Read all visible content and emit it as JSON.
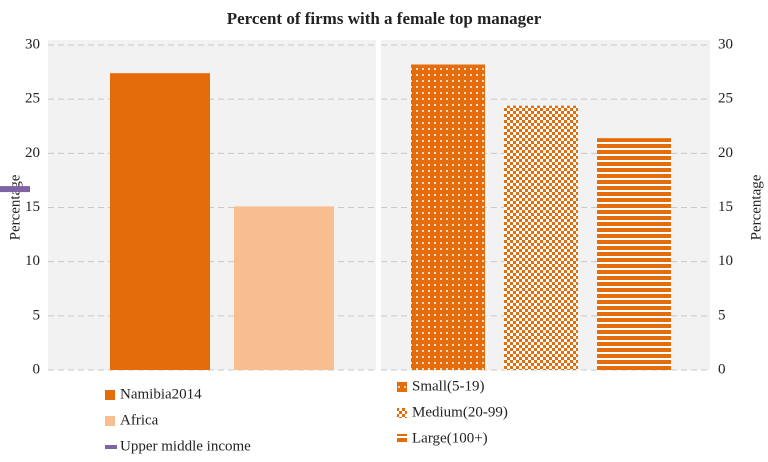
{
  "chart_data": [
    {
      "type": "bar",
      "title": "Percent of firms with a female top manager",
      "ylabel": "Percentage",
      "ylim": [
        0,
        30
      ],
      "yticks": [
        0,
        5,
        10,
        15,
        20,
        25,
        30
      ],
      "grid": true,
      "series": [
        {
          "name": "Namibia2014",
          "color": "#e46c0a",
          "values": [
            27.4
          ]
        },
        {
          "name": "Africa",
          "color": "#f9be8f",
          "values": [
            15.1
          ]
        },
        {
          "name": "Upper middle income",
          "color": "#8064a2",
          "style": "marker",
          "values": [
            16.7
          ]
        }
      ]
    },
    {
      "type": "bar",
      "ylabel": "Percentage",
      "ylim": [
        0,
        30
      ],
      "yticks": [
        0,
        5,
        10,
        15,
        20,
        25,
        30
      ],
      "grid": true,
      "series": [
        {
          "name": "Small(5-19)",
          "color": "#e46c0a",
          "pattern": "dots",
          "values": [
            28.2
          ]
        },
        {
          "name": "Medium(20-99)",
          "color": "#e46c0a",
          "pattern": "checker",
          "values": [
            24.4
          ]
        },
        {
          "name": "Large(100+)",
          "color": "#e46c0a",
          "pattern": "stripes",
          "values": [
            21.4
          ]
        }
      ]
    }
  ]
}
